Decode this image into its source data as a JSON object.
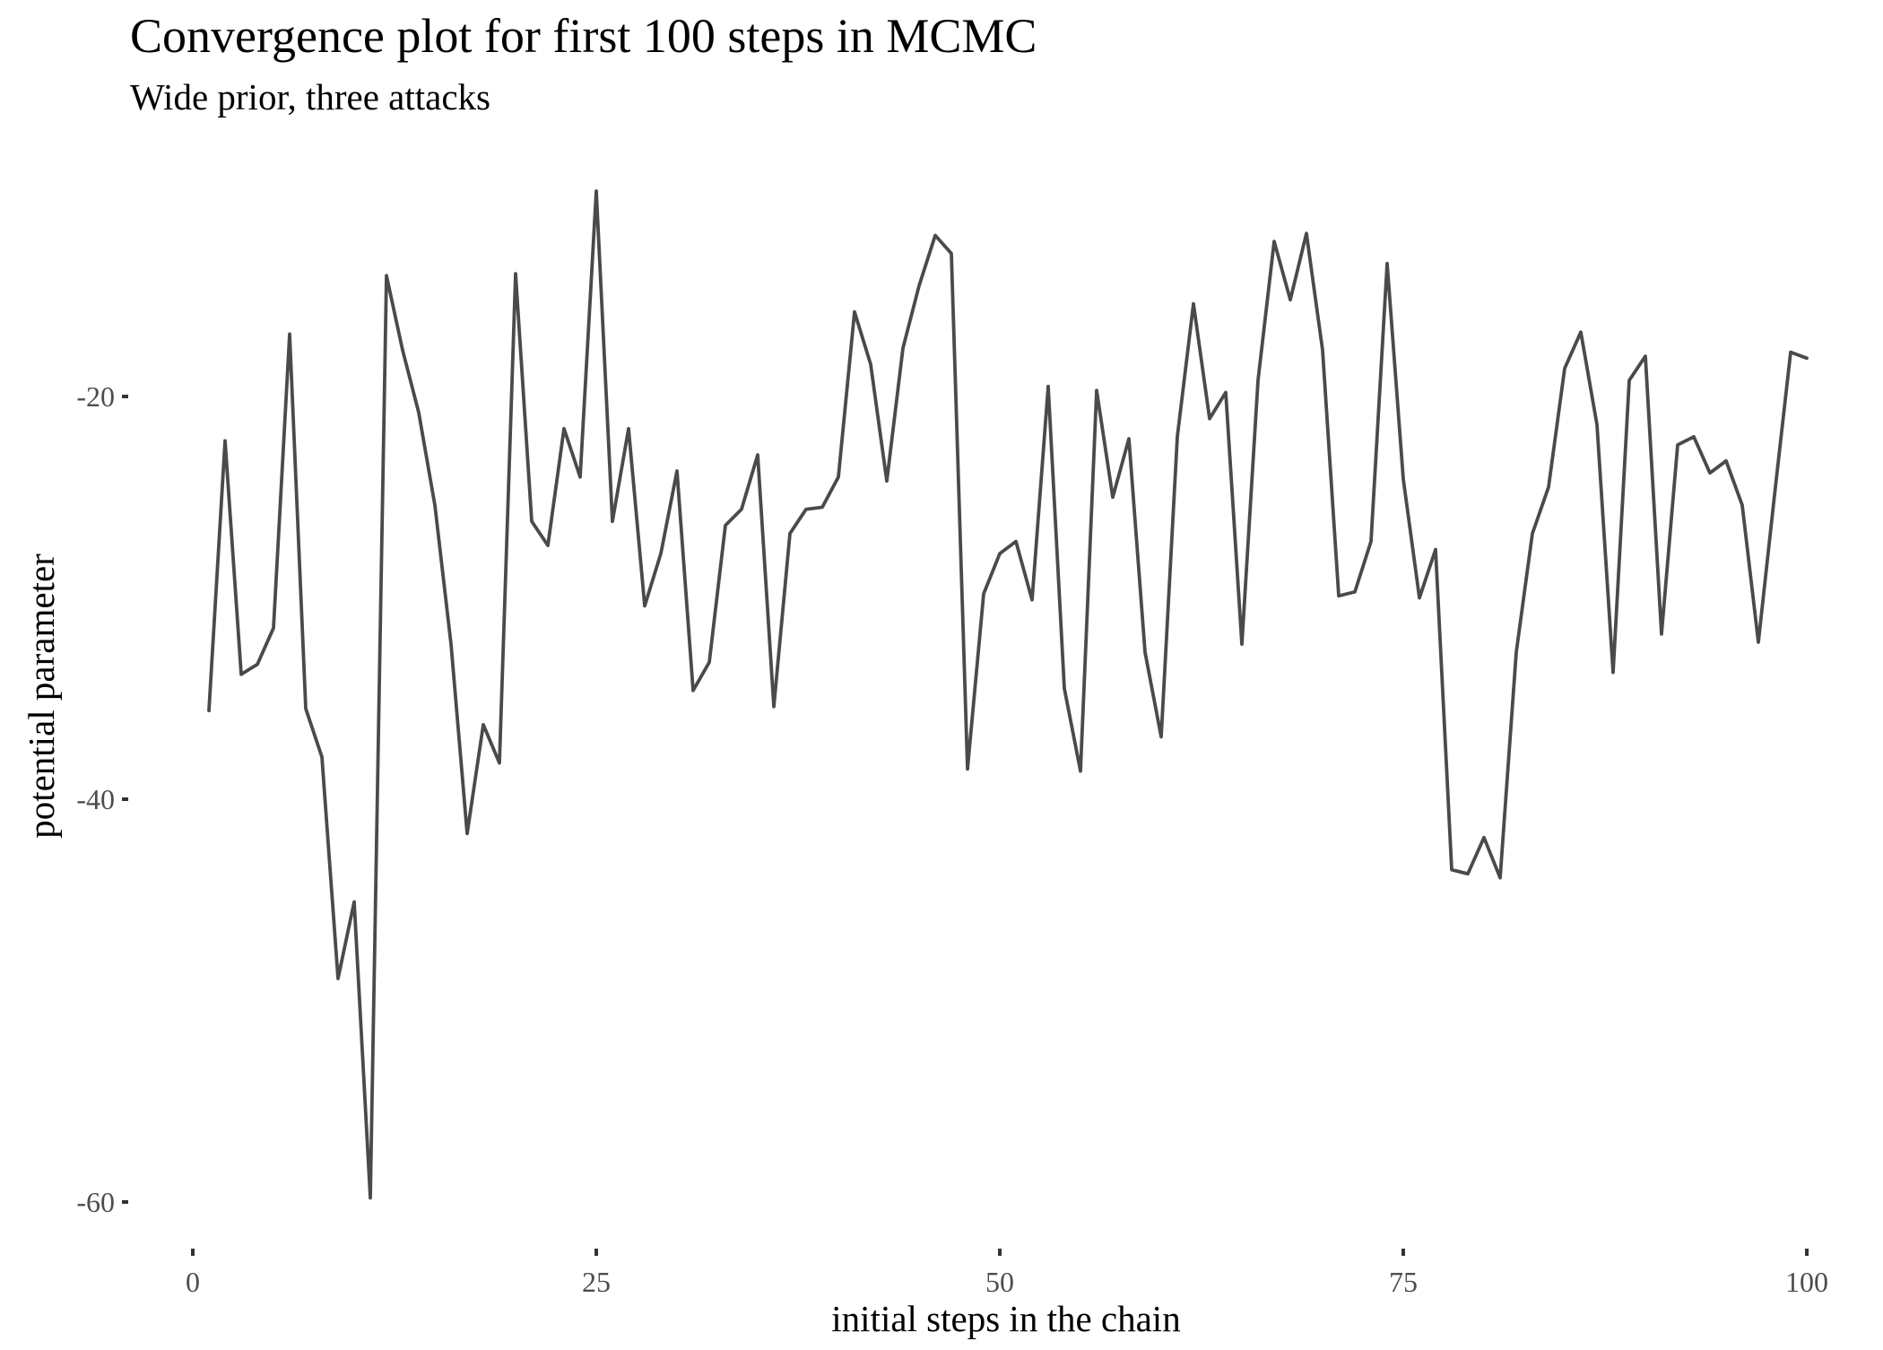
{
  "chart_data": {
    "type": "line",
    "title": "Convergence plot for first 100 steps in MCMC",
    "subtitle": "Wide prior, three attacks",
    "xlabel": "initial steps in the chain",
    "ylabel": "potential parameter",
    "xlim": [
      0,
      100
    ],
    "ylim": [
      -60,
      -8
    ],
    "x_ticks": [
      0,
      25,
      50,
      75,
      100
    ],
    "x_tick_labels": [
      "0",
      "25",
      "50",
      "75",
      "100"
    ],
    "y_ticks": [
      -20,
      -40,
      -60
    ],
    "y_tick_labels": [
      "-20",
      "-40",
      "-60"
    ],
    "grid": false,
    "legend": "none",
    "line_color": "#4a4a4a",
    "series": [
      {
        "x": [
          1,
          2,
          3,
          4,
          5,
          6,
          7,
          8,
          9,
          10,
          11,
          12,
          13,
          14,
          15,
          16,
          17,
          18,
          19,
          20,
          21,
          22,
          23,
          24,
          25,
          26,
          27,
          28,
          29,
          30,
          31,
          32,
          33,
          34,
          35,
          36,
          37,
          38,
          39,
          40,
          41,
          42,
          43,
          44,
          45,
          46,
          47,
          48,
          49,
          50,
          51,
          52,
          53,
          54,
          55,
          56,
          57,
          58,
          59,
          60,
          61,
          62,
          63,
          64,
          65,
          66,
          67,
          68,
          69,
          70,
          71,
          72,
          73,
          74,
          75,
          76,
          77,
          78,
          79,
          80,
          81,
          82,
          83,
          84,
          85,
          86,
          87,
          88,
          89,
          90,
          91,
          92,
          93,
          94,
          95,
          96,
          97,
          98,
          99,
          100
        ],
        "values": [
          -35.6,
          -22.2,
          -33.8,
          -33.3,
          -31.5,
          -16.9,
          -35.5,
          -37.9,
          -48.9,
          -45.1,
          -59.8,
          -14.0,
          -17.7,
          -20.8,
          -25.4,
          -32.3,
          -41.7,
          -36.3,
          -38.2,
          -13.9,
          -26.2,
          -27.4,
          -21.6,
          -24.0,
          -9.8,
          -26.2,
          -21.6,
          -30.4,
          -27.8,
          -23.7,
          -34.6,
          -33.2,
          -26.4,
          -25.6,
          -22.9,
          -35.4,
          -26.8,
          -25.6,
          -25.5,
          -24.0,
          -15.8,
          -18.4,
          -24.2,
          -17.6,
          -14.5,
          -12.0,
          -12.9,
          -38.5,
          -29.8,
          -27.8,
          -27.2,
          -30.1,
          -19.5,
          -34.5,
          -38.6,
          -19.7,
          -25.0,
          -22.1,
          -32.7,
          -36.9,
          -22.0,
          -15.4,
          -21.1,
          -19.8,
          -32.3,
          -19.2,
          -12.3,
          -15.2,
          -11.9,
          -17.7,
          -29.9,
          -29.7,
          -27.2,
          -13.4,
          -24.1,
          -30.0,
          -27.6,
          -43.5,
          -43.7,
          -41.9,
          -43.9,
          -32.7,
          -26.8,
          -24.5,
          -18.6,
          -16.8,
          -21.4,
          -33.7,
          -19.2,
          -18.0,
          -31.8,
          -22.4,
          -22.0,
          -23.8,
          -23.2,
          -25.4,
          -32.2,
          -24.9,
          -17.8,
          -18.1
        ]
      }
    ]
  }
}
